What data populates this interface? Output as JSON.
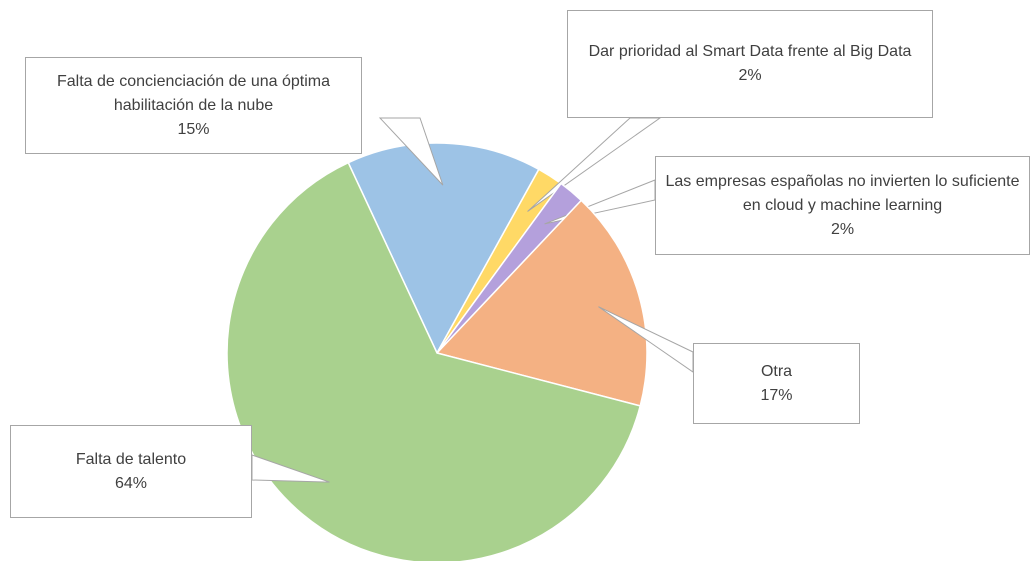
{
  "chart_data": {
    "type": "pie",
    "first_slice_angle": 335,
    "categories": [
      "Falta de concienciación de una óptima habilitación de la nube",
      "Dar prioridad al Smart Data frente al Big Data",
      "Las empresas españolas no invierten lo suficiente en cloud y machine learning",
      "Otra",
      "Falta de talento"
    ],
    "values": [
      15,
      2,
      2,
      17,
      64
    ],
    "value_labels": [
      "15%",
      "2%",
      "2%",
      "17%",
      "64%"
    ],
    "colors": [
      "#9dc3e6",
      "#ffd966",
      "#b4a0dc",
      "#f4b183",
      "#a9d18e"
    ]
  }
}
